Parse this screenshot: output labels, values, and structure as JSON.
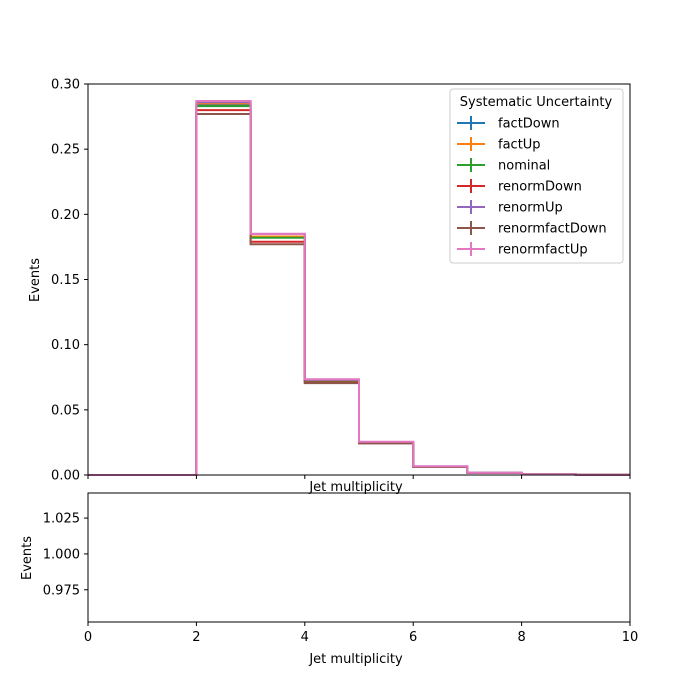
{
  "chart_data": [
    {
      "type": "line",
      "panel": "main",
      "xlabel": "Jet multiplicity",
      "ylabel": "Events",
      "xlim": [
        0,
        10
      ],
      "ylim": [
        0.0,
        0.3
      ],
      "yticks": [
        "0.00",
        "0.05",
        "0.10",
        "0.15",
        "0.20",
        "0.25",
        "0.30"
      ],
      "bin_edges": [
        0,
        1,
        2,
        3,
        4,
        5,
        6,
        7,
        8,
        9,
        10
      ],
      "grid": false,
      "legend": {
        "title": "Systematic Uncertainty",
        "placement": "top-right"
      },
      "series": [
        {
          "name": "factDown",
          "color": "#1f77b4",
          "values": [
            0.0,
            0.0,
            0.284,
            0.183,
            0.072,
            0.025,
            0.0065,
            0.0016,
            0.0005,
            0.0001
          ]
        },
        {
          "name": "factUp",
          "color": "#ff7f0e",
          "values": [
            0.0,
            0.0,
            0.285,
            0.183,
            0.072,
            0.025,
            0.0065,
            0.0016,
            0.0005,
            0.0001
          ]
        },
        {
          "name": "nominal",
          "color": "#2ca02c",
          "values": [
            0.0,
            0.0,
            0.283,
            0.182,
            0.0715,
            0.0248,
            0.0064,
            0.0016,
            0.0005,
            0.0001
          ]
        },
        {
          "name": "renormDown",
          "color": "#d62728",
          "values": [
            0.0,
            0.0,
            0.28,
            0.179,
            0.071,
            0.0245,
            0.0063,
            0.0015,
            0.0005,
            0.0001
          ]
        },
        {
          "name": "renormUp",
          "color": "#9467bd",
          "values": [
            0.0,
            0.0,
            0.286,
            0.185,
            0.073,
            0.0252,
            0.0066,
            0.0017,
            0.0005,
            0.0001
          ]
        },
        {
          "name": "renormfactDown",
          "color": "#8c564b",
          "values": [
            0.0,
            0.0,
            0.277,
            0.177,
            0.0705,
            0.0243,
            0.0062,
            0.0015,
            0.0005,
            0.0001
          ]
        },
        {
          "name": "renormfactUp",
          "color": "#e377c2",
          "values": [
            0.0,
            0.0,
            0.287,
            0.185,
            0.0735,
            0.0255,
            0.0067,
            0.0017,
            0.0005,
            0.0001
          ]
        }
      ]
    },
    {
      "type": "line",
      "panel": "ratio",
      "xlabel": "Jet multiplicity",
      "ylabel": "Events",
      "xlim": [
        0,
        10
      ],
      "ylim": [
        0.9525,
        1.0425
      ],
      "xticks": [
        "0",
        "2",
        "4",
        "6",
        "8",
        "10"
      ],
      "yticks": [
        "0.975",
        "1.000",
        "1.025"
      ],
      "grid": false,
      "series": []
    }
  ]
}
